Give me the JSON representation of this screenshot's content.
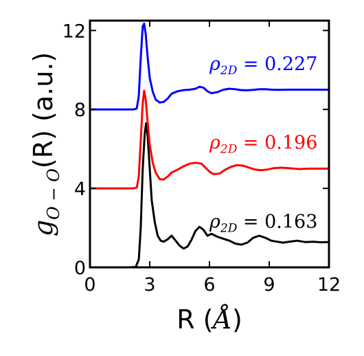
{
  "chart_data": {
    "type": "line",
    "xlabel": {
      "prefix": "R (",
      "symbol": "Å",
      "suffix": ")"
    },
    "ylabel": {
      "g": "g",
      "sub": "O − O",
      "rest": "(R) (a.u.)"
    },
    "xlim": [
      0,
      12
    ],
    "ylim": [
      0,
      12.5
    ],
    "xticks": [
      0,
      3,
      6,
      9,
      12
    ],
    "xtick_labels": [
      "0",
      "3",
      "6",
      "9",
      "12"
    ],
    "yticks": [
      0,
      4,
      8,
      12
    ],
    "ytick_labels": [
      "0",
      "4",
      "8",
      "12"
    ],
    "grid": false,
    "legend": "none",
    "series": [
      {
        "color": "#000000",
        "offset": 0,
        "label": {
          "rho": "ρ",
          "sub": "2D",
          "eq": " = 0.163",
          "x": 6,
          "y": 2.0
        },
        "x": [
          0,
          0.5,
          1.0,
          1.5,
          2.0,
          2.3,
          2.45,
          2.55,
          2.65,
          2.75,
          2.82,
          2.9,
          3.0,
          3.1,
          3.25,
          3.4,
          3.55,
          3.7,
          3.9,
          4.1,
          4.3,
          4.5,
          4.7,
          4.9,
          5.1,
          5.3,
          5.5,
          5.7,
          5.9,
          6.1,
          6.4,
          6.7,
          7.0,
          7.3,
          7.6,
          7.9,
          8.2,
          8.5,
          8.8,
          9.1,
          9.4,
          9.7,
          10.0,
          10.4,
          10.8,
          11.2,
          11.6,
          12.0
        ],
        "y": [
          0,
          0,
          0,
          0,
          0,
          0.02,
          0.4,
          2.0,
          5.0,
          6.8,
          7.3,
          6.6,
          5.0,
          3.4,
          2.3,
          1.6,
          1.35,
          1.3,
          1.42,
          1.6,
          1.35,
          1.1,
          0.95,
          1.05,
          1.4,
          1.85,
          2.05,
          1.9,
          1.6,
          1.7,
          1.55,
          1.45,
          1.35,
          1.2,
          1.15,
          1.25,
          1.5,
          1.6,
          1.5,
          1.35,
          1.3,
          1.25,
          1.3,
          1.35,
          1.28,
          1.3,
          1.27,
          1.28
        ]
      },
      {
        "color": "#ff0000",
        "offset": 4,
        "label": {
          "rho": "ρ",
          "sub": "2D",
          "eq": " = 0.196",
          "x": 6,
          "y": 6.0
        },
        "x": [
          0,
          0.5,
          1.0,
          1.5,
          2.0,
          2.2,
          2.35,
          2.45,
          2.55,
          2.65,
          2.72,
          2.8,
          2.9,
          3.0,
          3.15,
          3.3,
          3.5,
          3.7,
          3.9,
          4.1,
          4.4,
          4.7,
          5.0,
          5.3,
          5.6,
          5.8,
          6.0,
          6.2,
          6.5,
          6.8,
          7.1,
          7.4,
          7.7,
          8.0,
          8.3,
          8.6,
          8.9,
          9.2,
          9.6,
          10.0,
          10.5,
          11.0,
          11.5,
          12.0
        ],
        "y": [
          0,
          0,
          0,
          0,
          0,
          0,
          0.05,
          0.6,
          2.4,
          4.3,
          4.95,
          4.5,
          3.3,
          2.2,
          1.3,
          0.8,
          0.47,
          0.45,
          0.6,
          0.8,
          0.95,
          1.12,
          1.25,
          1.3,
          1.25,
          1.05,
          0.85,
          0.72,
          0.75,
          0.95,
          1.1,
          1.18,
          1.15,
          1.05,
          0.95,
          0.92,
          0.95,
          1.02,
          1.05,
          1.02,
          0.98,
          1.0,
          1.0,
          1.0
        ]
      },
      {
        "color": "#0000ff",
        "offset": 8,
        "label": {
          "rho": "ρ",
          "sub": "2D",
          "eq": " = 0.227",
          "x": 6,
          "y": 10.0
        },
        "x": [
          0,
          0.5,
          1.0,
          1.5,
          2.0,
          2.2,
          2.35,
          2.45,
          2.55,
          2.65,
          2.72,
          2.8,
          2.9,
          3.0,
          3.15,
          3.3,
          3.5,
          3.7,
          3.9,
          4.1,
          4.4,
          4.7,
          5.0,
          5.3,
          5.5,
          5.7,
          5.9,
          6.1,
          6.4,
          6.7,
          7.0,
          7.3,
          7.6,
          7.9,
          8.2,
          8.5,
          8.8,
          9.1,
          9.5,
          10.0,
          10.5,
          11.0,
          11.5,
          12.0
        ],
        "y": [
          0,
          0,
          0,
          0,
          0,
          0,
          0.05,
          0.7,
          2.6,
          4.2,
          4.35,
          3.8,
          2.6,
          1.6,
          0.9,
          0.5,
          0.35,
          0.38,
          0.55,
          0.8,
          0.92,
          0.98,
          1.0,
          1.05,
          1.15,
          1.1,
          0.92,
          0.82,
          0.88,
          1.0,
          1.05,
          1.02,
          0.98,
          0.97,
          0.99,
          1.02,
          1.03,
          1.0,
          0.99,
          1.0,
          1.0,
          1.0,
          1.0,
          1.0
        ]
      }
    ]
  }
}
